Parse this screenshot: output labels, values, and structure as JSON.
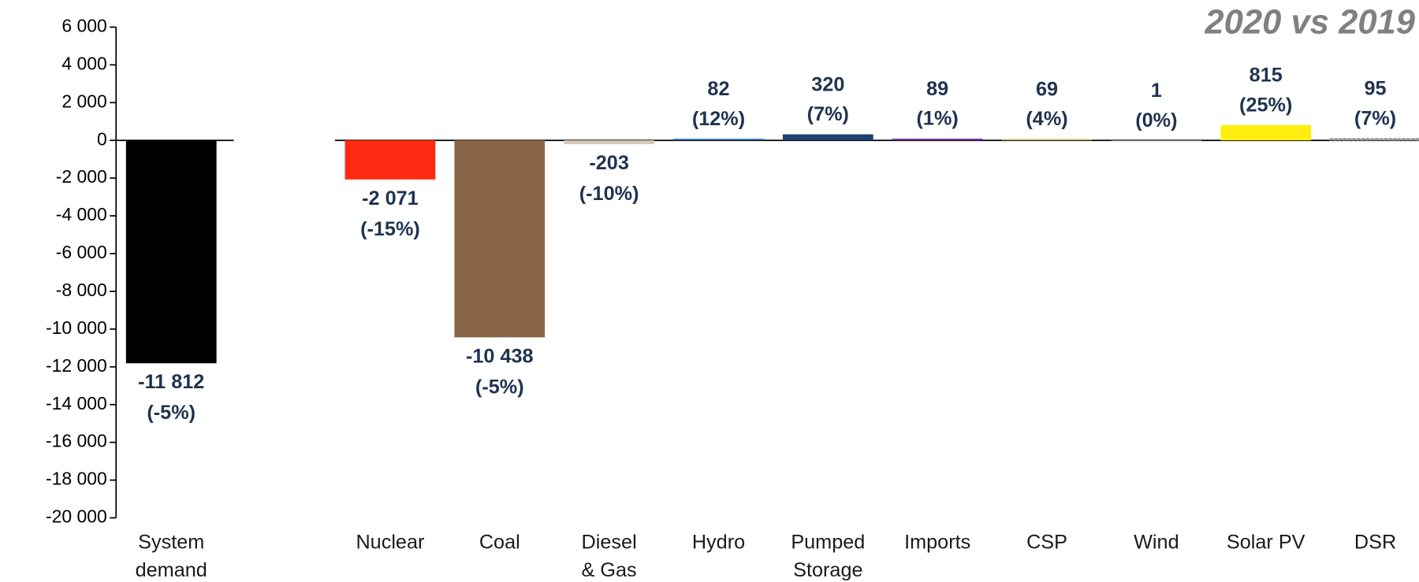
{
  "chart_data": {
    "type": "bar",
    "title": "2020 vs 2019",
    "categories": [
      "System demand",
      null,
      "Nuclear",
      "Coal",
      "Diesel & Gas",
      "Hydro",
      "Pumped Storage",
      "Imports",
      "CSP",
      "Wind",
      "Solar PV",
      "DSR"
    ],
    "values": [
      -11812,
      null,
      -2071,
      -10438,
      -203,
      82,
      320,
      89,
      69,
      1,
      815,
      95
    ],
    "value_labels": [
      "-11 812",
      null,
      "-2 071",
      "-10 438",
      "-203",
      "82",
      "320",
      "89",
      "69",
      "1",
      "815",
      "95"
    ],
    "percent_labels": [
      "(-5%)",
      null,
      "(-15%)",
      "(-5%)",
      "(-10%)",
      "(12%)",
      "(7%)",
      "(1%)",
      "(4%)",
      "(0%)",
      "(25%)",
      "(7%)"
    ],
    "colors": [
      "#000000",
      null,
      "#ff2a12",
      "#8b6548",
      "#d9c9b8",
      "#2e64b0",
      "#1f3f70",
      "#7030a0",
      "#c8b878",
      "#bfbfbf",
      "#ffee10",
      "#a6a6a6"
    ],
    "ylim": [
      -20000,
      6000
    ],
    "yticks": [
      {
        "value": -20000,
        "label": "-20 000"
      },
      {
        "value": -18000,
        "label": "-18 000"
      },
      {
        "value": -16000,
        "label": "-16 000"
      },
      {
        "value": -14000,
        "label": "-14 000"
      },
      {
        "value": -12000,
        "label": "-12 000"
      },
      {
        "value": -10000,
        "label": "-10 000"
      },
      {
        "value": -8000,
        "label": "-8 000"
      },
      {
        "value": -6000,
        "label": "-6 000"
      },
      {
        "value": -4000,
        "label": "-4 000"
      },
      {
        "value": -2000,
        "label": "-2 000"
      },
      0,
      {
        "value": 2000,
        "label": "2 000"
      },
      {
        "value": 4000,
        "label": "4 000"
      },
      {
        "value": 6000,
        "label": "6 000"
      }
    ],
    "grid": false
  }
}
